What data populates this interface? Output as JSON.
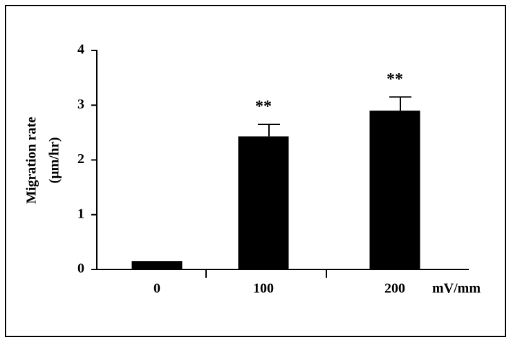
{
  "chart_data": {
    "type": "bar",
    "categories": [
      "0",
      "100",
      "200"
    ],
    "x_label": "mV/mm",
    "y_label": [
      "Migration rate",
      "(µm/hr)"
    ],
    "values": [
      0.15,
      2.43,
      2.9
    ],
    "errors": [
      null,
      0.22,
      0.25
    ],
    "annotations": [
      null,
      "**",
      "**"
    ],
    "color": "#000000",
    "ylim": [
      0,
      4
    ],
    "yticks": [
      0,
      1,
      2,
      3,
      4
    ],
    "grid": false
  }
}
